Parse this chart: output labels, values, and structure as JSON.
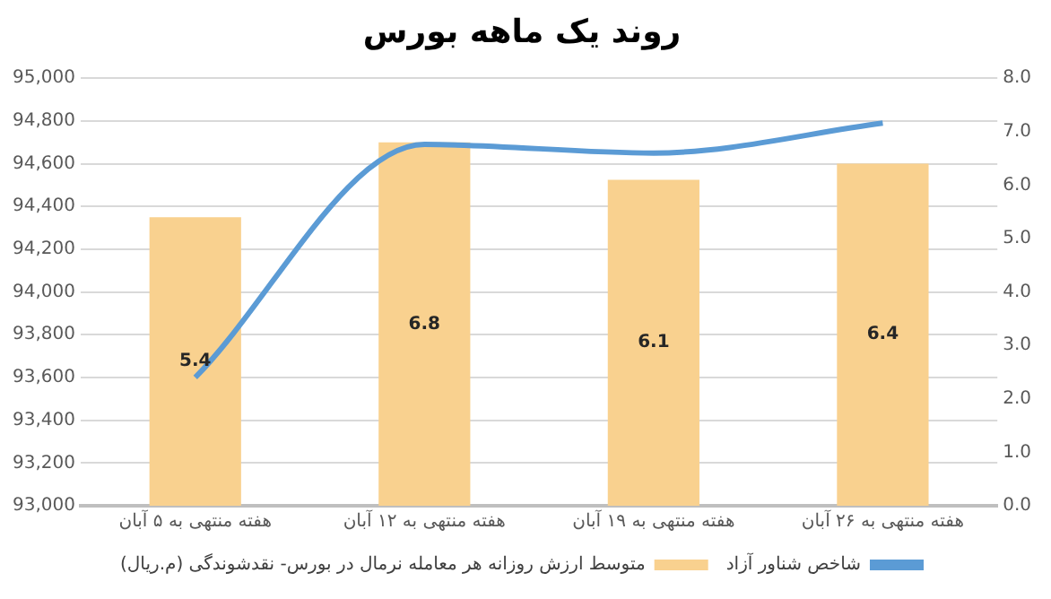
{
  "chart_data": {
    "type": "bar",
    "title": "روند یک ماهه بورس",
    "categories": [
      "هفته منتهی به ۵ آبان",
      "هفته منتهی به ۱۲ آبان",
      "هفته منتهی به ۱۹ آبان",
      "هفته منتهی به ۲۶ آبان"
    ],
    "series": [
      {
        "name": "متوسط ارزش روزانه هر معامله نرمال در بورس- نقدشوندگی (م.ریال)",
        "axis": "y2",
        "color": "#f9d18f",
        "values": [
          5.4,
          6.8,
          6.1,
          6.4
        ],
        "value_labels": [
          "5.4",
          "6.8",
          "6.1",
          "6.4"
        ]
      },
      {
        "name": "شاخص شناور آزاد",
        "type": "line",
        "axis": "y",
        "color": "#5b9bd5",
        "values": [
          93600,
          94690,
          94650,
          94790
        ]
      }
    ],
    "ylim": [
      93000,
      95000
    ],
    "yticks": [
      {
        "value": 93000,
        "label": "93,000"
      },
      {
        "value": 93200,
        "label": "93,200"
      },
      {
        "value": 93400,
        "label": "93,400"
      },
      {
        "value": 93600,
        "label": "93,600"
      },
      {
        "value": 93800,
        "label": "93,800"
      },
      {
        "value": 94000,
        "label": "94,000"
      },
      {
        "value": 94200,
        "label": "94,200"
      },
      {
        "value": 94400,
        "label": "94,400"
      },
      {
        "value": 94600,
        "label": "94,600"
      },
      {
        "value": 94800,
        "label": "94,800"
      },
      {
        "value": 95000,
        "label": "95,000"
      }
    ],
    "y2lim": [
      0,
      8
    ],
    "y2ticks": [
      {
        "value": 0,
        "label": "0.0"
      },
      {
        "value": 1,
        "label": "1.0"
      },
      {
        "value": 2,
        "label": "2.0"
      },
      {
        "value": 3,
        "label": "3.0"
      },
      {
        "value": 4,
        "label": "4.0"
      },
      {
        "value": 5,
        "label": "5.0"
      },
      {
        "value": 6,
        "label": "6.0"
      },
      {
        "value": 7,
        "label": "7.0"
      },
      {
        "value": 8,
        "label": "8.0"
      }
    ],
    "grid": "y",
    "legend": "bottom",
    "marker": "none",
    "line_style": "solid"
  }
}
